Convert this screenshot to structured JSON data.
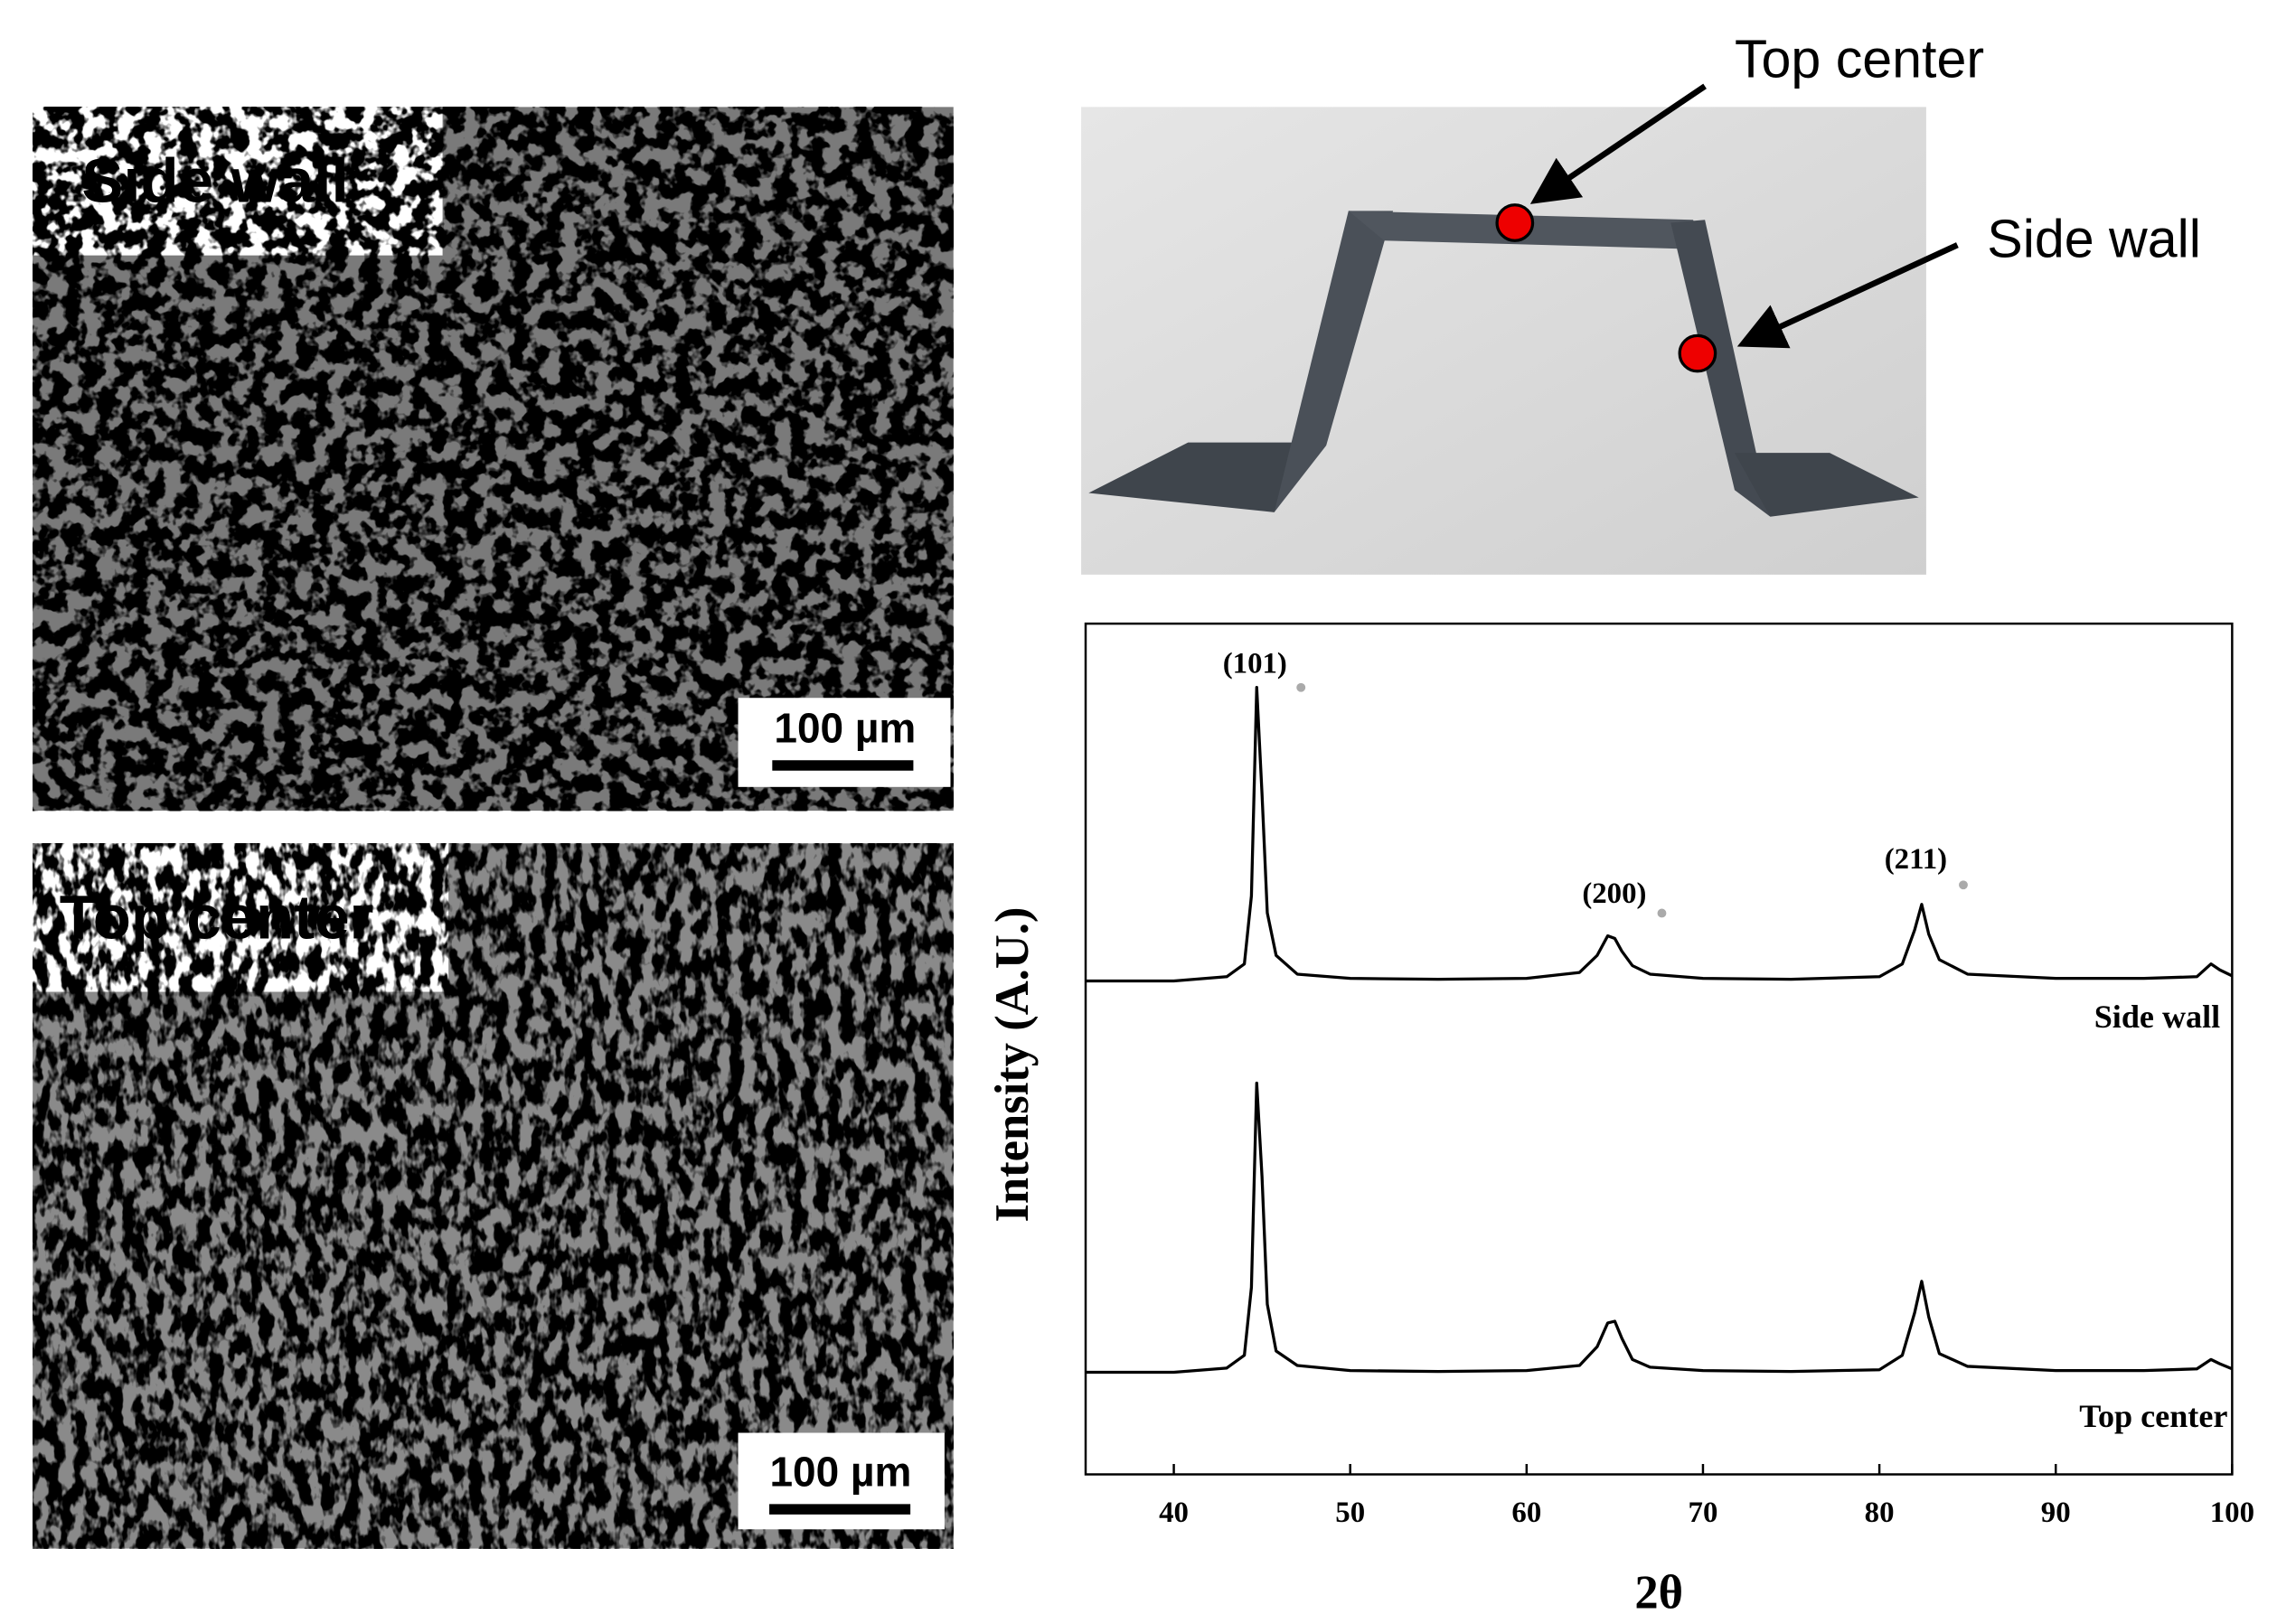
{
  "figure": {
    "micrographs": [
      {
        "label": "Side wall",
        "scale_bar": "100 µm"
      },
      {
        "label": "Top center",
        "scale_bar": "100 µm"
      }
    ],
    "photo": {
      "callouts": [
        "Top center",
        "Side wall"
      ]
    }
  },
  "chart_data": {
    "type": "line",
    "xlabel": "2θ",
    "ylabel": "Intensity (A.U.)",
    "xlim": [
      35,
      100
    ],
    "xticks": [
      40,
      50,
      60,
      70,
      80,
      90,
      100
    ],
    "ylim": [
      0,
      100
    ],
    "annotations": [
      "(101)",
      "(200)",
      "(211)"
    ],
    "x": [
      35,
      40,
      43,
      44,
      44.4,
      44.7,
      45,
      45.3,
      45.8,
      47,
      50,
      55,
      60,
      63,
      64,
      64.6,
      65,
      65.4,
      66,
      67,
      70,
      75,
      80,
      81.3,
      82,
      82.4,
      82.8,
      83.4,
      85,
      90,
      95,
      98,
      98.8,
      99.3,
      100
    ],
    "series": [
      {
        "name": "Side wall",
        "color": "#000000",
        "values": [
          58,
          58,
          58.5,
          60,
          68,
          92.5,
          80,
          66,
          61,
          58.8,
          58.3,
          58.2,
          58.3,
          59,
          61,
          63.3,
          63,
          61.5,
          59.8,
          58.8,
          58.3,
          58.2,
          58.5,
          60,
          64,
          67,
          63.5,
          60.5,
          58.8,
          58.3,
          58.3,
          58.5,
          60,
          59.3,
          58.6
        ]
      },
      {
        "name": "Top center",
        "color": "#000000",
        "values": [
          12,
          12,
          12.5,
          14,
          22,
          46,
          35,
          20,
          14.5,
          12.8,
          12.2,
          12.1,
          12.2,
          12.8,
          15,
          17.8,
          18,
          16,
          13.5,
          12.6,
          12.2,
          12.1,
          12.3,
          14,
          19,
          22.7,
          18.5,
          14.2,
          12.7,
          12.2,
          12.2,
          12.4,
          13.5,
          13,
          12.4
        ]
      }
    ]
  }
}
